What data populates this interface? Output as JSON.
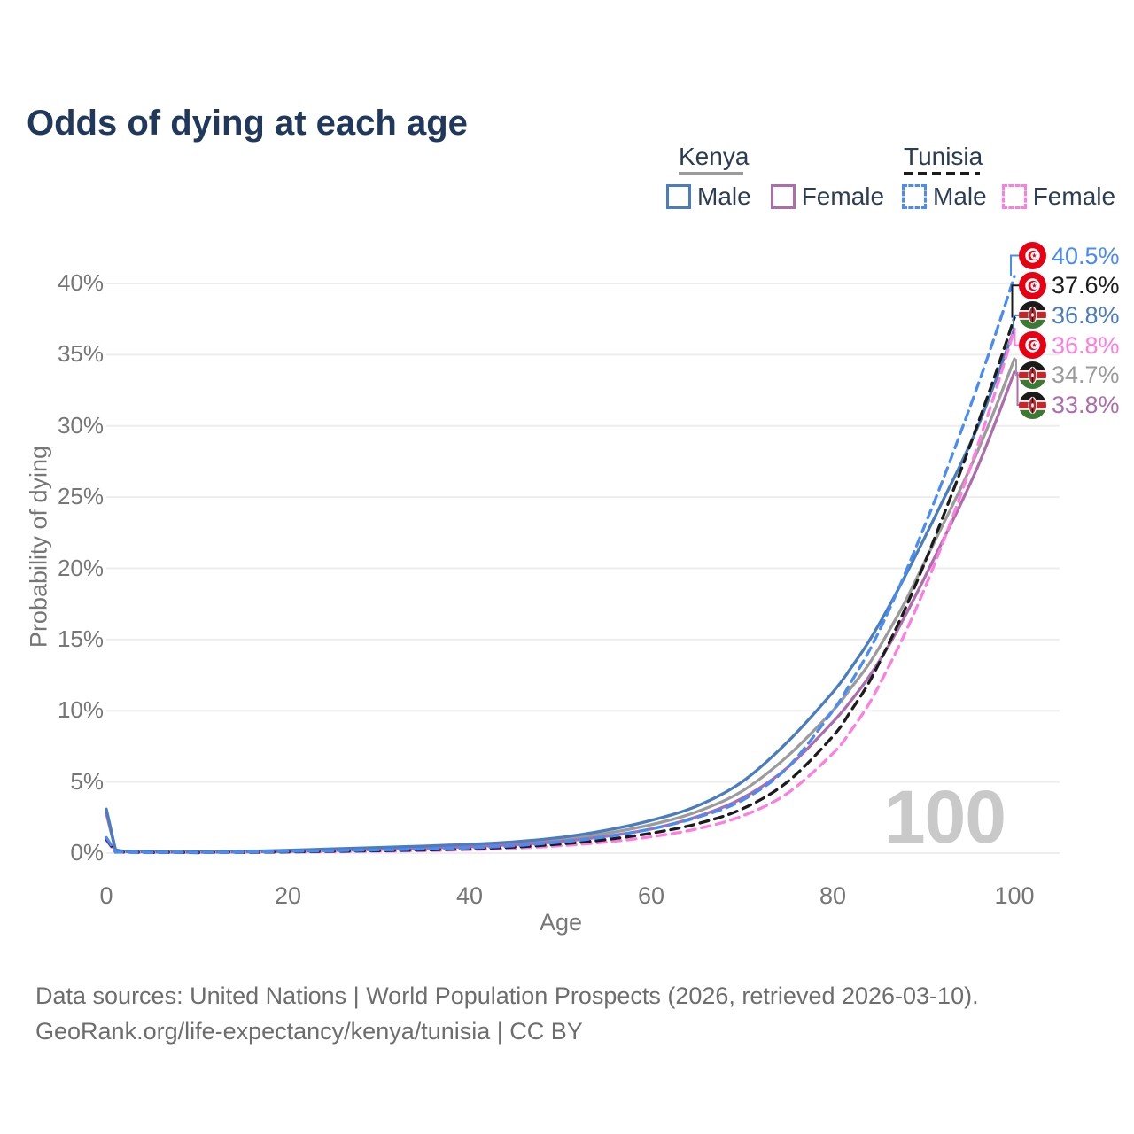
{
  "title": "Odds of dying at each age",
  "watermark": "100",
  "source": {
    "line1": "Data sources: United Nations | World Population Prospects (2026, retrieved 2026-03-10).",
    "line2": "GeoRank.org/life-expectancy/kenya/tunisia | CC BY"
  },
  "colors": {
    "kenya_male": "#4a7dbe",
    "kenya_female": "#ad6dad",
    "kenya_total": "#9b9b9b",
    "tunisia_male": "#4a8cf5",
    "tunisia_female": "#ff7ce0",
    "tunisia_total": "#1c1c1c",
    "gridline": "#ededed",
    "title_text": "#20385c",
    "axis_text": "#767676",
    "watermark_text": "#c9c9c9",
    "flag_tunisia_red": "#e70013",
    "flag_kenya_red": "#c1272d",
    "flag_kenya_green": "#3a7a33",
    "flag_kenya_black": "#1a1a1a"
  },
  "legend": {
    "kenya": {
      "label": "Kenya",
      "line_style": "solid",
      "line_color": "#9b9b9b",
      "items": [
        {
          "label": "Male",
          "color": "#4a7dbe",
          "style": "solid"
        },
        {
          "label": "Female",
          "color": "#ad6dad",
          "style": "solid"
        }
      ]
    },
    "tunisia": {
      "label": "Tunisia",
      "line_style": "dashed",
      "line_color": "#1c1c1c",
      "items": [
        {
          "label": "Male",
          "color": "#4a8cf5",
          "style": "dashed"
        },
        {
          "label": "Female",
          "color": "#ff7ce0",
          "style": "dashed"
        }
      ]
    }
  },
  "end_labels": [
    {
      "value": "40.5%",
      "flag": "tunisia",
      "series": "tunisia_male",
      "color": "#4a8cf5"
    },
    {
      "value": "37.6%",
      "flag": "tunisia",
      "series": "tunisia_total",
      "color": "#1c1c1c"
    },
    {
      "value": "36.8%",
      "flag": "kenya",
      "series": "kenya_male",
      "color": "#4a7dbe"
    },
    {
      "value": "36.8%",
      "flag": "tunisia",
      "series": "tunisia_female",
      "color": "#ff7ce0"
    },
    {
      "value": "34.7%",
      "flag": "kenya",
      "series": "kenya_total",
      "color": "#9b9b9b"
    },
    {
      "value": "33.8%",
      "flag": "kenya",
      "series": "kenya_female",
      "color": "#ad6dad"
    }
  ],
  "axes": {
    "y_ticks": [
      "0%",
      "5%",
      "10%",
      "15%",
      "20%",
      "25%",
      "30%",
      "35%",
      "40%"
    ],
    "x_ticks": [
      "0",
      "20",
      "40",
      "60",
      "80",
      "100"
    ]
  },
  "chart_data": {
    "type": "line",
    "title": "Odds of dying at each age",
    "xlabel": "Age",
    "ylabel": "Probability of dying",
    "xlim": [
      0,
      100
    ],
    "ylim": [
      0,
      42
    ],
    "grid": "horizontal",
    "legend_position": "top-right",
    "series": [
      {
        "id": "kenya_total",
        "name": "Kenya (both sexes)",
        "color": "#9b9b9b",
        "dash": false,
        "points": [
          [
            0,
            2.95
          ],
          [
            1,
            0.23
          ],
          [
            5,
            0.09
          ],
          [
            10,
            0.07
          ],
          [
            15,
            0.1
          ],
          [
            20,
            0.16
          ],
          [
            25,
            0.24
          ],
          [
            30,
            0.33
          ],
          [
            35,
            0.42
          ],
          [
            40,
            0.53
          ],
          [
            45,
            0.7
          ],
          [
            50,
            0.95
          ],
          [
            55,
            1.38
          ],
          [
            60,
            2.0
          ],
          [
            65,
            2.9
          ],
          [
            70,
            4.35
          ],
          [
            75,
            6.8
          ],
          [
            80,
            10.0
          ],
          [
            82,
            11.6
          ],
          [
            84,
            13.3
          ],
          [
            86,
            15.4
          ],
          [
            88,
            17.7
          ],
          [
            90,
            20.3
          ],
          [
            92,
            22.9
          ],
          [
            94,
            25.5
          ],
          [
            96,
            28.3
          ],
          [
            98,
            31.4
          ],
          [
            100,
            34.7
          ]
        ]
      },
      {
        "id": "kenya_female",
        "name": "Kenya Female",
        "color": "#ad6dad",
        "dash": false,
        "points": [
          [
            0,
            2.8
          ],
          [
            1,
            0.21
          ],
          [
            5,
            0.08
          ],
          [
            10,
            0.06
          ],
          [
            15,
            0.08
          ],
          [
            20,
            0.12
          ],
          [
            25,
            0.18
          ],
          [
            30,
            0.26
          ],
          [
            35,
            0.35
          ],
          [
            40,
            0.45
          ],
          [
            45,
            0.6
          ],
          [
            50,
            0.82
          ],
          [
            55,
            1.18
          ],
          [
            60,
            1.7
          ],
          [
            65,
            2.55
          ],
          [
            70,
            3.85
          ],
          [
            75,
            6.0
          ],
          [
            80,
            9.2
          ],
          [
            82,
            10.7
          ],
          [
            84,
            12.4
          ],
          [
            86,
            14.4
          ],
          [
            88,
            16.7
          ],
          [
            90,
            19.2
          ],
          [
            92,
            21.8
          ],
          [
            94,
            24.4
          ],
          [
            96,
            27.2
          ],
          [
            98,
            30.4
          ],
          [
            100,
            33.8
          ]
        ]
      },
      {
        "id": "kenya_male",
        "name": "Kenya Male",
        "color": "#4a7dbe",
        "dash": false,
        "points": [
          [
            0,
            3.1
          ],
          [
            1,
            0.25
          ],
          [
            5,
            0.1
          ],
          [
            10,
            0.08
          ],
          [
            15,
            0.12
          ],
          [
            20,
            0.2
          ],
          [
            25,
            0.3
          ],
          [
            30,
            0.4
          ],
          [
            35,
            0.5
          ],
          [
            40,
            0.62
          ],
          [
            45,
            0.8
          ],
          [
            50,
            1.1
          ],
          [
            55,
            1.6
          ],
          [
            60,
            2.3
          ],
          [
            65,
            3.3
          ],
          [
            70,
            5.0
          ],
          [
            75,
            7.8
          ],
          [
            80,
            11.3
          ],
          [
            82,
            13.0
          ],
          [
            84,
            14.9
          ],
          [
            86,
            17.1
          ],
          [
            88,
            19.5
          ],
          [
            90,
            22.0
          ],
          [
            92,
            24.6
          ],
          [
            94,
            27.2
          ],
          [
            96,
            30.0
          ],
          [
            98,
            33.3
          ],
          [
            100,
            36.8
          ]
        ]
      },
      {
        "id": "tunisia_female",
        "name": "Tunisia Female",
        "color": "#ff7ce0",
        "dash": true,
        "points": [
          [
            0,
            0.9
          ],
          [
            1,
            0.07
          ],
          [
            5,
            0.03
          ],
          [
            10,
            0.025
          ],
          [
            15,
            0.045
          ],
          [
            20,
            0.07
          ],
          [
            25,
            0.1
          ],
          [
            30,
            0.13
          ],
          [
            35,
            0.17
          ],
          [
            40,
            0.24
          ],
          [
            45,
            0.34
          ],
          [
            50,
            0.52
          ],
          [
            55,
            0.78
          ],
          [
            60,
            1.15
          ],
          [
            65,
            1.7
          ],
          [
            70,
            2.6
          ],
          [
            75,
            4.2
          ],
          [
            80,
            7.0
          ],
          [
            82,
            8.6
          ],
          [
            84,
            10.5
          ],
          [
            86,
            12.9
          ],
          [
            88,
            15.5
          ],
          [
            90,
            18.4
          ],
          [
            92,
            21.6
          ],
          [
            94,
            25.0
          ],
          [
            96,
            28.7
          ],
          [
            98,
            32.6
          ],
          [
            100,
            36.8
          ]
        ]
      },
      {
        "id": "tunisia_total",
        "name": "Tunisia (both sexes)",
        "color": "#1c1c1c",
        "dash": true,
        "points": [
          [
            0,
            1.0
          ],
          [
            1,
            0.08
          ],
          [
            5,
            0.035
          ],
          [
            10,
            0.03
          ],
          [
            15,
            0.055
          ],
          [
            20,
            0.09
          ],
          [
            25,
            0.13
          ],
          [
            30,
            0.17
          ],
          [
            35,
            0.22
          ],
          [
            40,
            0.3
          ],
          [
            45,
            0.43
          ],
          [
            50,
            0.64
          ],
          [
            55,
            0.95
          ],
          [
            60,
            1.4
          ],
          [
            65,
            2.05
          ],
          [
            70,
            3.1
          ],
          [
            75,
            5.0
          ],
          [
            80,
            8.2
          ],
          [
            82,
            10.0
          ],
          [
            84,
            12.0
          ],
          [
            86,
            14.5
          ],
          [
            88,
            17.2
          ],
          [
            90,
            20.2
          ],
          [
            92,
            23.4
          ],
          [
            94,
            26.7
          ],
          [
            96,
            30.2
          ],
          [
            98,
            33.8
          ],
          [
            100,
            37.6
          ]
        ]
      },
      {
        "id": "tunisia_male",
        "name": "Tunisia Male",
        "color": "#4a8cf5",
        "dash": true,
        "points": [
          [
            0,
            1.1
          ],
          [
            1,
            0.09
          ],
          [
            5,
            0.04
          ],
          [
            10,
            0.035
          ],
          [
            15,
            0.07
          ],
          [
            20,
            0.12
          ],
          [
            25,
            0.17
          ],
          [
            30,
            0.22
          ],
          [
            35,
            0.28
          ],
          [
            40,
            0.37
          ],
          [
            45,
            0.52
          ],
          [
            50,
            0.78
          ],
          [
            55,
            1.15
          ],
          [
            60,
            1.7
          ],
          [
            65,
            2.5
          ],
          [
            70,
            3.7
          ],
          [
            75,
            6.0
          ],
          [
            80,
            10.0
          ],
          [
            82,
            12.0
          ],
          [
            84,
            14.2
          ],
          [
            86,
            16.8
          ],
          [
            88,
            19.7
          ],
          [
            90,
            22.8
          ],
          [
            92,
            26.0
          ],
          [
            94,
            29.4
          ],
          [
            96,
            32.9
          ],
          [
            98,
            36.6
          ],
          [
            100,
            40.5
          ]
        ]
      }
    ]
  }
}
